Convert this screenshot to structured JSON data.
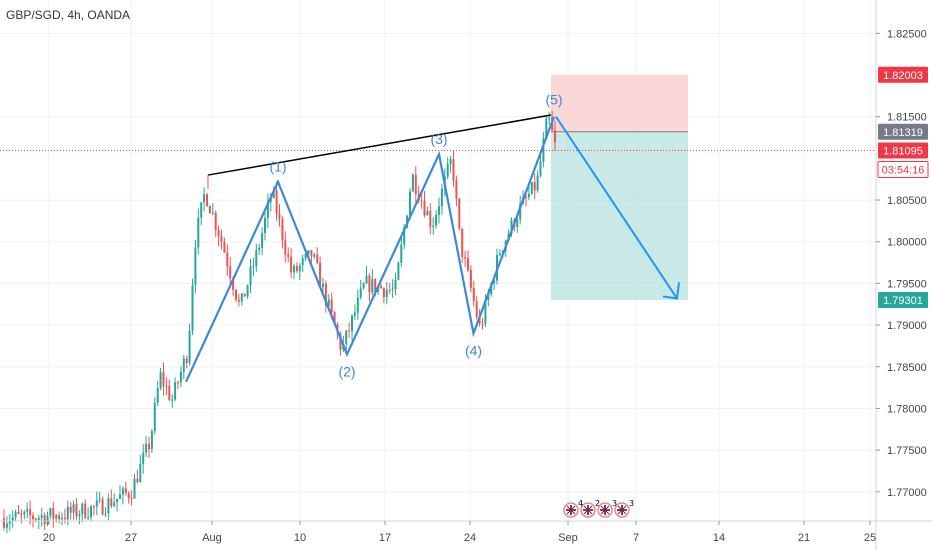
{
  "header": {
    "symbol_title": "GBP/SGD, 4h, OANDA"
  },
  "chart_data": {
    "type": "candlestick",
    "symbol": "GBP/SGD",
    "interval": "4h",
    "source": "OANDA",
    "x_tick_labels": [
      "20",
      "27",
      "Aug",
      "10",
      "17",
      "24",
      "Sep",
      "7",
      "14",
      "21",
      "25"
    ],
    "y_tick_labels": [
      "1.82500",
      "1.81500",
      "1.80500",
      "1.80000",
      "1.79500",
      "1.79000",
      "1.78500",
      "1.78000",
      "1.77500",
      "1.77000"
    ],
    "ylim": [
      1.7665,
      1.829
    ],
    "price_tags": [
      {
        "label": "1.82003",
        "value": 1.82003,
        "role": "stop-loss",
        "color": "#f23645"
      },
      {
        "label": "1.81319",
        "value": 1.81319,
        "role": "entry",
        "color": "#787b86"
      },
      {
        "label": "1.81095",
        "value": 1.81095,
        "role": "last-price",
        "color": "#f23645"
      },
      {
        "label": "03:54:16",
        "role": "bar-countdown",
        "color": "#f23645"
      },
      {
        "label": "1.79301",
        "value": 1.79301,
        "role": "take-profit",
        "color": "#26a69a"
      }
    ],
    "elliott_wave": {
      "points": [
        {
          "label": "",
          "date": "2020-07-30",
          "price": 1.7832
        },
        {
          "label": "(1)",
          "date": "2020-08-07",
          "price": 1.8072
        },
        {
          "label": "(2)",
          "date": "2020-08-13",
          "price": 1.7865
        },
        {
          "label": "(3)",
          "date": "2020-08-21",
          "price": 1.8105
        },
        {
          "label": "(4)",
          "date": "2020-08-24",
          "price": 1.789
        },
        {
          "label": "(5)",
          "date": "2020-08-31",
          "price": 1.815
        }
      ],
      "projection": {
        "from_price": 1.815,
        "to_price": 1.7932
      }
    },
    "trendline": {
      "from_price": 1.808,
      "to_price": 1.8152
    },
    "short_position": {
      "entry": 1.81319,
      "stop": 1.82003,
      "target": 1.79301
    },
    "events": [
      {
        "label": "4"
      },
      {
        "label": "2"
      },
      {
        "label": "3"
      },
      {
        "label": "3"
      }
    ],
    "colors": {
      "up": "#26a69a",
      "down": "#ef5350",
      "wave": "#3c8ad6",
      "trendline": "#000000",
      "profit_zone": "#b2dfdb",
      "loss_zone": "#fad4d4"
    }
  }
}
